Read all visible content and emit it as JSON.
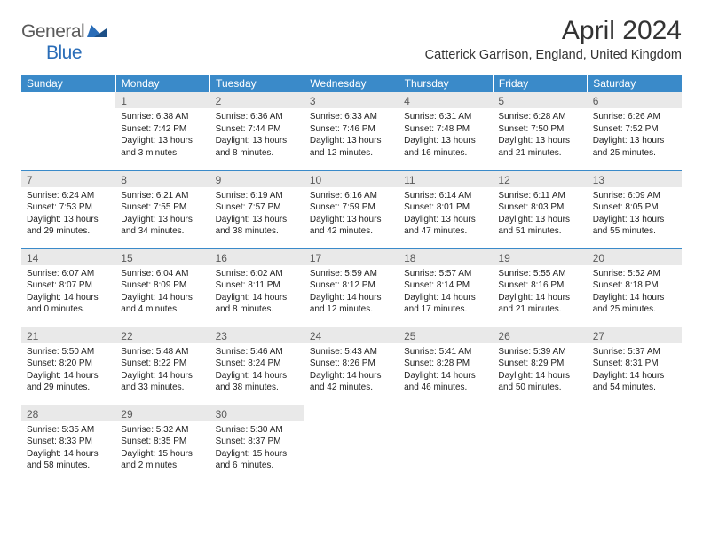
{
  "brand": {
    "name_a": "General",
    "name_b": "Blue"
  },
  "title": "April 2024",
  "location": "Catterick Garrison, England, United Kingdom",
  "colors": {
    "header_bg": "#3a8ac9",
    "header_fg": "#ffffff",
    "daynum_bg": "#e9e9e9",
    "daynum_fg": "#5a5a5a",
    "row_border": "#3a8ac9",
    "text": "#222222",
    "brand_gray": "#5a5a5a",
    "brand_blue": "#2a6db8"
  },
  "day_headers": [
    "Sunday",
    "Monday",
    "Tuesday",
    "Wednesday",
    "Thursday",
    "Friday",
    "Saturday"
  ],
  "weeks": [
    [
      {
        "n": "",
        "sr": "",
        "ss": "",
        "d1": "",
        "d2": ""
      },
      {
        "n": "1",
        "sr": "Sunrise: 6:38 AM",
        "ss": "Sunset: 7:42 PM",
        "d1": "Daylight: 13 hours",
        "d2": "and 3 minutes."
      },
      {
        "n": "2",
        "sr": "Sunrise: 6:36 AM",
        "ss": "Sunset: 7:44 PM",
        "d1": "Daylight: 13 hours",
        "d2": "and 8 minutes."
      },
      {
        "n": "3",
        "sr": "Sunrise: 6:33 AM",
        "ss": "Sunset: 7:46 PM",
        "d1": "Daylight: 13 hours",
        "d2": "and 12 minutes."
      },
      {
        "n": "4",
        "sr": "Sunrise: 6:31 AM",
        "ss": "Sunset: 7:48 PM",
        "d1": "Daylight: 13 hours",
        "d2": "and 16 minutes."
      },
      {
        "n": "5",
        "sr": "Sunrise: 6:28 AM",
        "ss": "Sunset: 7:50 PM",
        "d1": "Daylight: 13 hours",
        "d2": "and 21 minutes."
      },
      {
        "n": "6",
        "sr": "Sunrise: 6:26 AM",
        "ss": "Sunset: 7:52 PM",
        "d1": "Daylight: 13 hours",
        "d2": "and 25 minutes."
      }
    ],
    [
      {
        "n": "7",
        "sr": "Sunrise: 6:24 AM",
        "ss": "Sunset: 7:53 PM",
        "d1": "Daylight: 13 hours",
        "d2": "and 29 minutes."
      },
      {
        "n": "8",
        "sr": "Sunrise: 6:21 AM",
        "ss": "Sunset: 7:55 PM",
        "d1": "Daylight: 13 hours",
        "d2": "and 34 minutes."
      },
      {
        "n": "9",
        "sr": "Sunrise: 6:19 AM",
        "ss": "Sunset: 7:57 PM",
        "d1": "Daylight: 13 hours",
        "d2": "and 38 minutes."
      },
      {
        "n": "10",
        "sr": "Sunrise: 6:16 AM",
        "ss": "Sunset: 7:59 PM",
        "d1": "Daylight: 13 hours",
        "d2": "and 42 minutes."
      },
      {
        "n": "11",
        "sr": "Sunrise: 6:14 AM",
        "ss": "Sunset: 8:01 PM",
        "d1": "Daylight: 13 hours",
        "d2": "and 47 minutes."
      },
      {
        "n": "12",
        "sr": "Sunrise: 6:11 AM",
        "ss": "Sunset: 8:03 PM",
        "d1": "Daylight: 13 hours",
        "d2": "and 51 minutes."
      },
      {
        "n": "13",
        "sr": "Sunrise: 6:09 AM",
        "ss": "Sunset: 8:05 PM",
        "d1": "Daylight: 13 hours",
        "d2": "and 55 minutes."
      }
    ],
    [
      {
        "n": "14",
        "sr": "Sunrise: 6:07 AM",
        "ss": "Sunset: 8:07 PM",
        "d1": "Daylight: 14 hours",
        "d2": "and 0 minutes."
      },
      {
        "n": "15",
        "sr": "Sunrise: 6:04 AM",
        "ss": "Sunset: 8:09 PM",
        "d1": "Daylight: 14 hours",
        "d2": "and 4 minutes."
      },
      {
        "n": "16",
        "sr": "Sunrise: 6:02 AM",
        "ss": "Sunset: 8:11 PM",
        "d1": "Daylight: 14 hours",
        "d2": "and 8 minutes."
      },
      {
        "n": "17",
        "sr": "Sunrise: 5:59 AM",
        "ss": "Sunset: 8:12 PM",
        "d1": "Daylight: 14 hours",
        "d2": "and 12 minutes."
      },
      {
        "n": "18",
        "sr": "Sunrise: 5:57 AM",
        "ss": "Sunset: 8:14 PM",
        "d1": "Daylight: 14 hours",
        "d2": "and 17 minutes."
      },
      {
        "n": "19",
        "sr": "Sunrise: 5:55 AM",
        "ss": "Sunset: 8:16 PM",
        "d1": "Daylight: 14 hours",
        "d2": "and 21 minutes."
      },
      {
        "n": "20",
        "sr": "Sunrise: 5:52 AM",
        "ss": "Sunset: 8:18 PM",
        "d1": "Daylight: 14 hours",
        "d2": "and 25 minutes."
      }
    ],
    [
      {
        "n": "21",
        "sr": "Sunrise: 5:50 AM",
        "ss": "Sunset: 8:20 PM",
        "d1": "Daylight: 14 hours",
        "d2": "and 29 minutes."
      },
      {
        "n": "22",
        "sr": "Sunrise: 5:48 AM",
        "ss": "Sunset: 8:22 PM",
        "d1": "Daylight: 14 hours",
        "d2": "and 33 minutes."
      },
      {
        "n": "23",
        "sr": "Sunrise: 5:46 AM",
        "ss": "Sunset: 8:24 PM",
        "d1": "Daylight: 14 hours",
        "d2": "and 38 minutes."
      },
      {
        "n": "24",
        "sr": "Sunrise: 5:43 AM",
        "ss": "Sunset: 8:26 PM",
        "d1": "Daylight: 14 hours",
        "d2": "and 42 minutes."
      },
      {
        "n": "25",
        "sr": "Sunrise: 5:41 AM",
        "ss": "Sunset: 8:28 PM",
        "d1": "Daylight: 14 hours",
        "d2": "and 46 minutes."
      },
      {
        "n": "26",
        "sr": "Sunrise: 5:39 AM",
        "ss": "Sunset: 8:29 PM",
        "d1": "Daylight: 14 hours",
        "d2": "and 50 minutes."
      },
      {
        "n": "27",
        "sr": "Sunrise: 5:37 AM",
        "ss": "Sunset: 8:31 PM",
        "d1": "Daylight: 14 hours",
        "d2": "and 54 minutes."
      }
    ],
    [
      {
        "n": "28",
        "sr": "Sunrise: 5:35 AM",
        "ss": "Sunset: 8:33 PM",
        "d1": "Daylight: 14 hours",
        "d2": "and 58 minutes."
      },
      {
        "n": "29",
        "sr": "Sunrise: 5:32 AM",
        "ss": "Sunset: 8:35 PM",
        "d1": "Daylight: 15 hours",
        "d2": "and 2 minutes."
      },
      {
        "n": "30",
        "sr": "Sunrise: 5:30 AM",
        "ss": "Sunset: 8:37 PM",
        "d1": "Daylight: 15 hours",
        "d2": "and 6 minutes."
      },
      {
        "n": "",
        "sr": "",
        "ss": "",
        "d1": "",
        "d2": ""
      },
      {
        "n": "",
        "sr": "",
        "ss": "",
        "d1": "",
        "d2": ""
      },
      {
        "n": "",
        "sr": "",
        "ss": "",
        "d1": "",
        "d2": ""
      },
      {
        "n": "",
        "sr": "",
        "ss": "",
        "d1": "",
        "d2": ""
      }
    ]
  ]
}
